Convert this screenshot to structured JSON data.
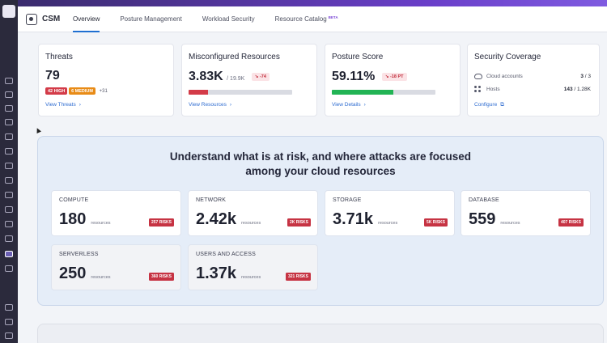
{
  "header": {
    "app_name": "CSM",
    "tabs": [
      {
        "label": "Overview"
      },
      {
        "label": "Posture Management"
      },
      {
        "label": "Workload Security"
      },
      {
        "label": "Resource Catalog",
        "badge": "BETA"
      }
    ]
  },
  "cards": {
    "threats": {
      "title": "Threats",
      "value": "79",
      "high": "42 HIGH",
      "medium": "6 MEDIUM",
      "more": "+31",
      "link": "View Threats"
    },
    "misconfigured": {
      "title": "Misconfigured Resources",
      "value": "3.83K",
      "total": "/ 19.9K",
      "delta": "↘ -74",
      "progress": 0.19,
      "link": "View Resources"
    },
    "posture": {
      "title": "Posture Score",
      "value": "59.11%",
      "delta": "↘ -18 PT",
      "progress": 0.5911,
      "link": "View Details"
    },
    "coverage": {
      "title": "Security Coverage",
      "cloud_label": "Cloud accounts",
      "cloud_value": "3",
      "cloud_total": " / 3",
      "hosts_label": "Hosts",
      "hosts_value": "143",
      "hosts_total": " / 1.28K",
      "link": "Configure"
    }
  },
  "risk_panel": {
    "headline_line1": "Understand what is at risk, and where attacks are focused",
    "headline_line2": "among your cloud resources",
    "resources_label": "resources",
    "items": [
      {
        "label": "COMPUTE",
        "value": "180",
        "risks": "257 RISKS"
      },
      {
        "label": "NETWORK",
        "value": "2.42k",
        "risks": "2K RISKS"
      },
      {
        "label": "STORAGE",
        "value": "3.71k",
        "risks": "5K RISKS"
      },
      {
        "label": "DATABASE",
        "value": "559",
        "risks": "407 RISKS"
      },
      {
        "label": "SERVERLESS",
        "value": "250",
        "risks": "360 RISKS"
      },
      {
        "label": "USERS AND ACCESS",
        "value": "1.37k",
        "risks": "321 RISKS"
      }
    ]
  },
  "colors": {
    "accent": "#1f6fd1",
    "danger": "#d33b48",
    "warning": "#e88b16",
    "success": "#22b455",
    "sidebar": "#2b2a3c"
  }
}
